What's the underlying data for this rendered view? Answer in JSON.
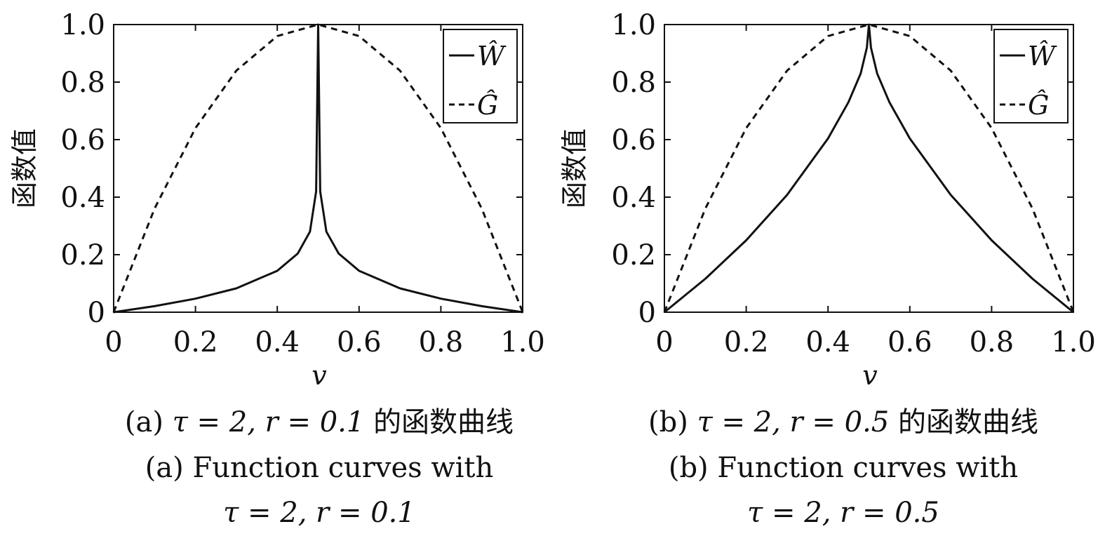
{
  "chart_data": [
    {
      "type": "line",
      "id": "a",
      "params": {
        "tau": 2,
        "r": 0.1
      },
      "xlabel": "v",
      "ylabel": "函数值",
      "xlim": [
        0,
        1
      ],
      "ylim": [
        0,
        1
      ],
      "xticks": [
        0,
        0.2,
        0.4,
        0.6,
        0.8,
        1.0
      ],
      "xtick_labels": [
        "0",
        "0.2",
        "0.4",
        "0.6",
        "0.8",
        "1.0"
      ],
      "yticks": [
        0,
        0.2,
        0.4,
        0.6,
        0.8,
        1.0
      ],
      "ytick_labels": [
        "0",
        "0.2",
        "0.4",
        "0.6",
        "0.8",
        "1.0"
      ],
      "legend": {
        "placement": "top-right",
        "entries": [
          "Ŵ",
          "Ĝ"
        ]
      },
      "series": [
        {
          "name": "Ŵ",
          "style": "solid",
          "x": [
            0,
            0.1,
            0.2,
            0.3,
            0.4,
            0.45,
            0.48,
            0.495,
            0.5,
            0.505,
            0.52,
            0.55,
            0.6,
            0.7,
            0.8,
            0.9,
            1.0
          ],
          "y": [
            0,
            0.021,
            0.047,
            0.083,
            0.144,
            0.204,
            0.28,
            0.42,
            1.0,
            0.42,
            0.28,
            0.204,
            0.144,
            0.083,
            0.047,
            0.021,
            0
          ]
        },
        {
          "name": "Ĝ",
          "style": "dashed",
          "x": [
            0,
            0.1,
            0.2,
            0.3,
            0.4,
            0.5,
            0.6,
            0.7,
            0.8,
            0.9,
            1.0
          ],
          "y": [
            0,
            0.36,
            0.64,
            0.84,
            0.96,
            1.0,
            0.96,
            0.84,
            0.64,
            0.36,
            0
          ]
        }
      ],
      "caption_cn": {
        "prefix": "(a)",
        "math": "τ = 2, r = 0.1",
        "suffix": "的函数曲线"
      },
      "caption_en": {
        "line1": "(a) Function curves with",
        "line2": "τ = 2, r = 0.1"
      }
    },
    {
      "type": "line",
      "id": "b",
      "params": {
        "tau": 2,
        "r": 0.5
      },
      "xlabel": "v",
      "ylabel": "函数值",
      "xlim": [
        0,
        1
      ],
      "ylim": [
        0,
        1
      ],
      "xticks": [
        0,
        0.2,
        0.4,
        0.6,
        0.8,
        1.0
      ],
      "xtick_labels": [
        "0",
        "0.2",
        "0.4",
        "0.6",
        "0.8",
        "1.0"
      ],
      "yticks": [
        0,
        0.2,
        0.4,
        0.6,
        0.8,
        1.0
      ],
      "ytick_labels": [
        "0",
        "0.2",
        "0.4",
        "0.6",
        "0.8",
        "1.0"
      ],
      "legend": {
        "placement": "top-right",
        "entries": [
          "Ŵ",
          "Ĝ"
        ]
      },
      "series": [
        {
          "name": "Ŵ",
          "style": "solid",
          "x": [
            0,
            0.1,
            0.2,
            0.3,
            0.4,
            0.45,
            0.48,
            0.495,
            0.5,
            0.505,
            0.52,
            0.55,
            0.6,
            0.7,
            0.8,
            0.9,
            1.0
          ],
          "y": [
            0,
            0.116,
            0.25,
            0.408,
            0.604,
            0.73,
            0.83,
            0.92,
            1.0,
            0.92,
            0.83,
            0.73,
            0.604,
            0.408,
            0.25,
            0.116,
            0
          ]
        },
        {
          "name": "Ĝ",
          "style": "dashed",
          "x": [
            0,
            0.1,
            0.2,
            0.3,
            0.4,
            0.5,
            0.6,
            0.7,
            0.8,
            0.9,
            1.0
          ],
          "y": [
            0,
            0.36,
            0.64,
            0.84,
            0.96,
            1.0,
            0.96,
            0.84,
            0.64,
            0.36,
            0
          ]
        }
      ],
      "caption_cn": {
        "prefix": "(b)",
        "math": "τ = 2, r = 0.5",
        "suffix": "的函数曲线"
      },
      "caption_en": {
        "line1": "(b) Function curves with",
        "line2": "τ = 2, r = 0.5"
      }
    }
  ]
}
